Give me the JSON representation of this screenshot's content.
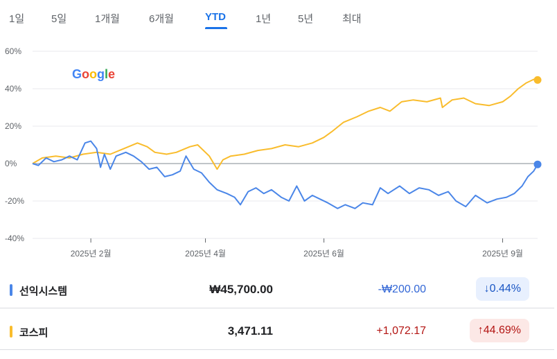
{
  "tabs": [
    {
      "label": "1일",
      "active": false
    },
    {
      "label": "5일",
      "active": false
    },
    {
      "label": "1개월",
      "active": false
    },
    {
      "label": "6개월",
      "active": false
    },
    {
      "label": "YTD",
      "active": true
    },
    {
      "label": "1년",
      "active": false
    },
    {
      "label": "5년",
      "active": false
    },
    {
      "label": "최대",
      "active": false
    }
  ],
  "logo": {
    "letters": [
      {
        "ch": "G",
        "color": "#4285F4"
      },
      {
        "ch": "o",
        "color": "#EA4335"
      },
      {
        "ch": "o",
        "color": "#FBBC05"
      },
      {
        "ch": "g",
        "color": "#4285F4"
      },
      {
        "ch": "l",
        "color": "#34A853"
      },
      {
        "ch": "e",
        "color": "#EA4335"
      }
    ]
  },
  "colors": {
    "blue_series": "#4a86e8",
    "yellow_series": "#f9bc2c",
    "zero_line": "#9aa0a6",
    "grid": "#e8eaed"
  },
  "chart_data": {
    "type": "line",
    "y_unit": "%",
    "ylim": [
      -40,
      60
    ],
    "y_ticks": [
      "60%",
      "40%",
      "20%",
      "0%",
      "-20%",
      "-40%"
    ],
    "x_ticks": [
      "2025년 2월",
      "2025년 4월",
      "2025년 6월",
      "2025년 9월"
    ],
    "x_tick_positions": [
      "2025-02-01",
      "2025-04-01",
      "2025-06-01",
      "2025-09-01"
    ],
    "x_range": [
      "2025-01-02",
      "2025-09-19"
    ],
    "grid": true,
    "series": [
      {
        "name": "선익시스템",
        "color": "#4a86e8",
        "points": [
          [
            "2025-01-02",
            0
          ],
          [
            "2025-01-05",
            -1
          ],
          [
            "2025-01-09",
            3
          ],
          [
            "2025-01-13",
            1
          ],
          [
            "2025-01-17",
            2
          ],
          [
            "2025-01-21",
            4
          ],
          [
            "2025-01-25",
            2
          ],
          [
            "2025-01-29",
            11
          ],
          [
            "2025-02-01",
            12
          ],
          [
            "2025-02-04",
            8
          ],
          [
            "2025-02-06",
            -2
          ],
          [
            "2025-02-08",
            5
          ],
          [
            "2025-02-11",
            -3
          ],
          [
            "2025-02-14",
            4
          ],
          [
            "2025-02-19",
            6
          ],
          [
            "2025-02-23",
            4
          ],
          [
            "2025-02-27",
            1
          ],
          [
            "2025-03-03",
            -3
          ],
          [
            "2025-03-07",
            -2
          ],
          [
            "2025-03-11",
            -7
          ],
          [
            "2025-03-15",
            -6
          ],
          [
            "2025-03-19",
            -4
          ],
          [
            "2025-03-22",
            4
          ],
          [
            "2025-03-26",
            -3
          ],
          [
            "2025-03-30",
            -5
          ],
          [
            "2025-04-03",
            -10
          ],
          [
            "2025-04-07",
            -14
          ],
          [
            "2025-04-12",
            -16
          ],
          [
            "2025-04-16",
            -18
          ],
          [
            "2025-04-19",
            -22
          ],
          [
            "2025-04-23",
            -15
          ],
          [
            "2025-04-27",
            -13
          ],
          [
            "2025-05-01",
            -16
          ],
          [
            "2025-05-05",
            -14
          ],
          [
            "2025-05-10",
            -18
          ],
          [
            "2025-05-14",
            -20
          ],
          [
            "2025-05-18",
            -12
          ],
          [
            "2025-05-22",
            -20
          ],
          [
            "2025-05-26",
            -17
          ],
          [
            "2025-05-30",
            -19
          ],
          [
            "2025-06-03",
            -21
          ],
          [
            "2025-06-08",
            -24
          ],
          [
            "2025-06-12",
            -22
          ],
          [
            "2025-06-17",
            -24
          ],
          [
            "2025-06-21",
            -21
          ],
          [
            "2025-06-26",
            -22
          ],
          [
            "2025-06-30",
            -13
          ],
          [
            "2025-07-04",
            -16
          ],
          [
            "2025-07-10",
            -12
          ],
          [
            "2025-07-15",
            -16
          ],
          [
            "2025-07-20",
            -13
          ],
          [
            "2025-07-25",
            -14
          ],
          [
            "2025-07-30",
            -17
          ],
          [
            "2025-08-04",
            -15
          ],
          [
            "2025-08-08",
            -20
          ],
          [
            "2025-08-13",
            -23
          ],
          [
            "2025-08-18",
            -17
          ],
          [
            "2025-08-24",
            -21
          ],
          [
            "2025-08-29",
            -19
          ],
          [
            "2025-09-03",
            -18
          ],
          [
            "2025-09-07",
            -16
          ],
          [
            "2025-09-11",
            -12
          ],
          [
            "2025-09-14",
            -7
          ],
          [
            "2025-09-17",
            -4
          ],
          [
            "2025-09-19",
            -0.44
          ]
        ]
      },
      {
        "name": "코스피",
        "color": "#f9bc2c",
        "points": [
          [
            "2025-01-02",
            0
          ],
          [
            "2025-01-07",
            3
          ],
          [
            "2025-01-14",
            4
          ],
          [
            "2025-01-21",
            3
          ],
          [
            "2025-01-28",
            5
          ],
          [
            "2025-02-04",
            6
          ],
          [
            "2025-02-11",
            5
          ],
          [
            "2025-02-18",
            8
          ],
          [
            "2025-02-25",
            11
          ],
          [
            "2025-03-02",
            9
          ],
          [
            "2025-03-06",
            6
          ],
          [
            "2025-03-12",
            5
          ],
          [
            "2025-03-17",
            6
          ],
          [
            "2025-03-24",
            9
          ],
          [
            "2025-03-28",
            10
          ],
          [
            "2025-04-03",
            4
          ],
          [
            "2025-04-07",
            -3
          ],
          [
            "2025-04-10",
            2
          ],
          [
            "2025-04-14",
            4
          ],
          [
            "2025-04-21",
            5
          ],
          [
            "2025-04-28",
            7
          ],
          [
            "2025-05-05",
            8
          ],
          [
            "2025-05-12",
            10
          ],
          [
            "2025-05-19",
            9
          ],
          [
            "2025-05-26",
            11
          ],
          [
            "2025-06-01",
            14
          ],
          [
            "2025-06-05",
            17
          ],
          [
            "2025-06-11",
            22
          ],
          [
            "2025-06-18",
            25
          ],
          [
            "2025-06-24",
            28
          ],
          [
            "2025-06-30",
            30
          ],
          [
            "2025-07-05",
            28
          ],
          [
            "2025-07-11",
            33
          ],
          [
            "2025-07-17",
            34
          ],
          [
            "2025-07-24",
            33
          ],
          [
            "2025-07-31",
            35
          ],
          [
            "2025-08-01",
            30
          ],
          [
            "2025-08-06",
            34
          ],
          [
            "2025-08-12",
            35
          ],
          [
            "2025-08-18",
            32
          ],
          [
            "2025-08-25",
            31
          ],
          [
            "2025-09-01",
            33
          ],
          [
            "2025-09-05",
            36
          ],
          [
            "2025-09-09",
            40
          ],
          [
            "2025-09-13",
            43
          ],
          [
            "2025-09-17",
            45
          ],
          [
            "2025-09-19",
            44.69
          ]
        ]
      }
    ]
  },
  "rows": [
    {
      "name": "선익시스템",
      "price": "₩45,700.00",
      "change": "-₩200.00",
      "pct": "↓0.44%"
    },
    {
      "name": "코스피",
      "price": "3,471.11",
      "change": "+1,072.17",
      "pct": "↑44.69%"
    }
  ]
}
